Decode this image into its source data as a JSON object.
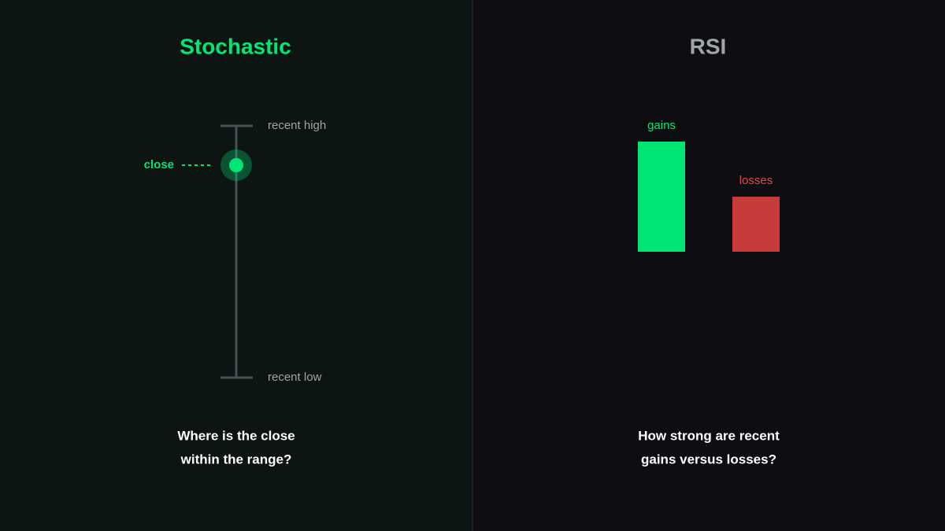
{
  "left": {
    "title": "Stochastic",
    "close_label": "close",
    "high_label": "recent high",
    "low_label": "recent low",
    "question": [
      "Where is the close",
      "within the range?"
    ]
  },
  "right": {
    "title": "RSI",
    "gains_label": "gains",
    "losses_label": "losses",
    "question": [
      "How strong are recent",
      "gains versus losses?"
    ]
  }
}
